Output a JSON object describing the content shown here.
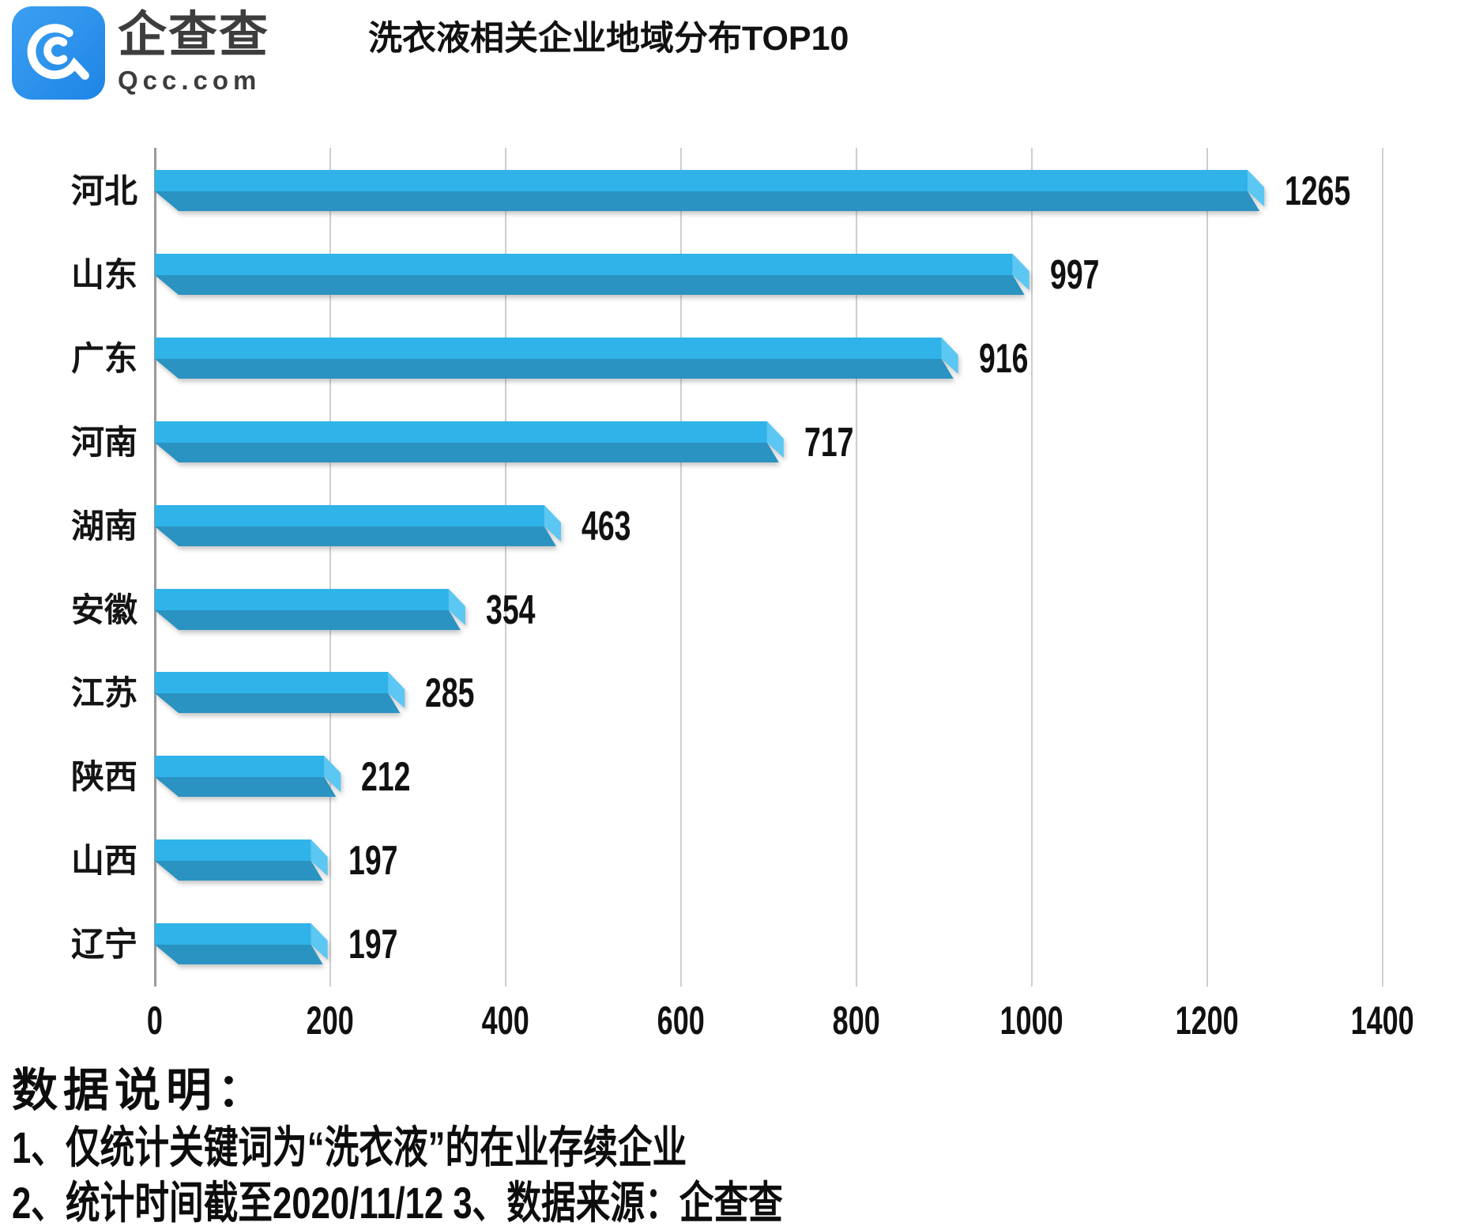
{
  "logo": {
    "name_cn": "企查查",
    "domain": "Qcc.com",
    "brand_color": "#2B91EC"
  },
  "chart_data": {
    "type": "bar",
    "orientation": "horizontal",
    "title": "洗衣液相关企业地域分布TOP10",
    "categories": [
      "河北",
      "山东",
      "广东",
      "河南",
      "湖南",
      "安徽",
      "江苏",
      "陕西",
      "山西",
      "辽宁"
    ],
    "values": [
      1265,
      997,
      916,
      717,
      463,
      354,
      285,
      212,
      197,
      197
    ],
    "xlim": [
      0,
      1400
    ],
    "x_ticks": [
      0,
      200,
      400,
      600,
      800,
      1000,
      1200,
      1400
    ],
    "grid": "vertical-gridlines-on",
    "legend": "none",
    "bar_color_top": "#2FB3E9",
    "bar_color_front": "#2B93C1",
    "bar_color_cap": "#5CC7F2",
    "gridline_color": "#cecece",
    "axis_line_color": "#9a9a9a",
    "label_color": "#111111"
  },
  "notes": {
    "heading": "数据说明：",
    "line1": "1、仅统计关键词为“洗衣液”的在业存续企业",
    "line2": "2、统计时间截至2020/11/12  3、数据来源：企查查"
  }
}
